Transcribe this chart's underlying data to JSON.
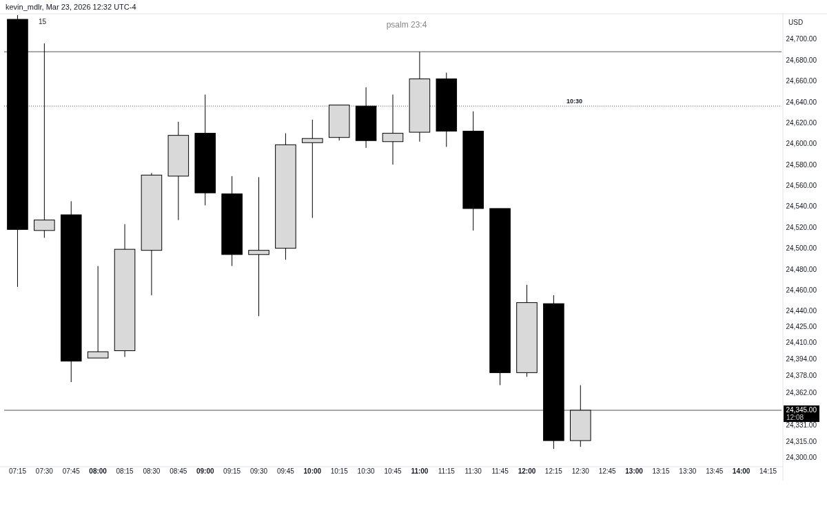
{
  "chart_data": {
    "type": "candlestick",
    "title": "psalm 23:4",
    "ylabel": "USD",
    "annotations": [
      "kevin_mdlr, Mar 23, 2026 12:32 UTC-4",
      "15",
      "24,345.00",
      "12:08",
      "10:30"
    ],
    "categories": [
      "07:15",
      "07:30",
      "07:45",
      "08:00",
      "08:15",
      "08:30",
      "08:45",
      "09:00",
      "09:15",
      "09:30",
      "09:45",
      "10:00",
      "10:15",
      "10:30",
      "10:45",
      "11:00",
      "11:15",
      "11:30",
      "11:45",
      "12:00",
      "12:15",
      "12:30",
      "12:45",
      "13:00",
      "13:15",
      "13:30",
      "13:45",
      "14:00",
      "14:15"
    ],
    "ohlc": [
      [
        24719,
        24723,
        24463,
        24518
      ],
      [
        24517,
        24696,
        24510,
        24527
      ],
      [
        24532,
        24545,
        24372,
        24392
      ],
      [
        24395,
        24483,
        24395,
        24401
      ],
      [
        24402,
        24523,
        24396,
        24499
      ],
      [
        24498,
        24572,
        24455,
        24570
      ],
      [
        24569,
        24621,
        24527,
        24608
      ],
      [
        24610,
        24647,
        24541,
        24553
      ],
      [
        24552,
        24569,
        24483,
        24494
      ],
      [
        24494,
        24568,
        24435,
        24498
      ],
      [
        24500,
        24610,
        24489,
        24599
      ],
      [
        24601,
        24623,
        24529,
        24605
      ],
      [
        24606,
        24637,
        24603,
        24637
      ],
      [
        24636,
        24654,
        24596,
        24603
      ],
      [
        24602,
        24647,
        24580,
        24610
      ],
      [
        24611,
        24688,
        24602,
        24662
      ],
      [
        24662,
        24668,
        24597,
        24612
      ],
      [
        24612,
        24631,
        24517,
        24538
      ],
      [
        24538,
        24538,
        24369,
        24381
      ],
      [
        24381,
        24465,
        24377,
        24448
      ],
      [
        24447,
        24455,
        24308,
        24316
      ],
      [
        24316,
        24369,
        24310,
        24345
      ],
      null,
      null,
      null,
      null,
      null,
      null,
      null
    ],
    "colors": [
      "#000000",
      "#d9d9d9",
      "#000000",
      "#d9d9d9",
      "#d9d9d9",
      "#d9d9d9",
      "#d9d9d9",
      "#000000",
      "#000000",
      "#d9d9d9",
      "#d9d9d9",
      "#d9d9d9",
      "#d9d9d9",
      "#000000",
      "#d9d9d9",
      "#d9d9d9",
      "#000000",
      "#000000",
      "#000000",
      "#d9d9d9",
      "#000000",
      "#d9d9d9",
      null,
      null,
      null,
      null,
      null,
      null,
      null
    ],
    "ylim": [
      24293,
      24723
    ],
    "yticks": [
      {
        "value": 24300,
        "label": "24,300.00"
      },
      {
        "value": 24315,
        "label": "24,315.00"
      },
      {
        "value": 24331,
        "label": "24,331.00"
      },
      {
        "value": 24362,
        "label": "24,362.00"
      },
      {
        "value": 24378,
        "label": "24,378.00"
      },
      {
        "value": 24394,
        "label": "24,394.00"
      },
      {
        "value": 24410,
        "label": "24,410.00"
      },
      {
        "value": 24425,
        "label": "24,425.00"
      },
      {
        "value": 24440,
        "label": "24,440.00"
      },
      {
        "value": 24460,
        "label": "24,460.00"
      },
      {
        "value": 24480,
        "label": "24,480.00"
      },
      {
        "value": 24500,
        "label": "24,500.00"
      },
      {
        "value": 24520,
        "label": "24,520.00"
      },
      {
        "value": 24540,
        "label": "24,540.00"
      },
      {
        "value": 24560,
        "label": "24,560.00"
      },
      {
        "value": 24580,
        "label": "24,580.00"
      },
      {
        "value": 24600,
        "label": "24,600.00"
      },
      {
        "value": 24620,
        "label": "24,620.00"
      },
      {
        "value": 24640,
        "label": "24,640.00"
      },
      {
        "value": 24660,
        "label": "24,660.00"
      },
      {
        "value": 24680,
        "label": "24,680.00"
      },
      {
        "value": 24700,
        "label": "24,700.00"
      }
    ],
    "ref_lines": [
      {
        "axis": "y",
        "value": 24345,
        "label": null,
        "color": "#555555",
        "line_style": "solid"
      },
      {
        "axis": "y",
        "value": 24688,
        "label": null,
        "color": "#555555",
        "line_style": "solid"
      },
      {
        "axis": "y",
        "value": 24636,
        "label": null,
        "color": "#555555",
        "line_style": "dotted"
      }
    ],
    "grid": false
  }
}
